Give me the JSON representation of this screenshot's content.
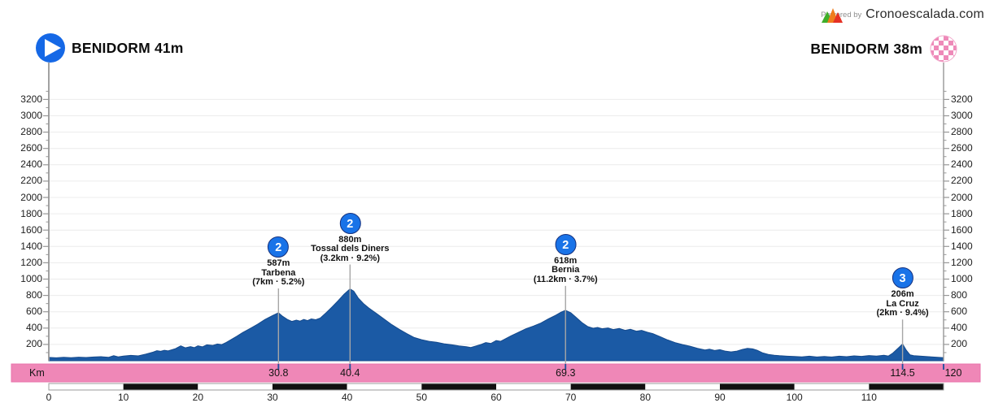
{
  "branding": {
    "powered_by": "Powered by",
    "brand": "Cronoescalada.com",
    "logo_colors": [
      "#3fae2a",
      "#f07d1d",
      "#e53125"
    ]
  },
  "header": {
    "start_label": "BENIDORM 41m",
    "finish_label": "BENIDORM 38m"
  },
  "colors": {
    "profile": "#1b5aa5",
    "profile_stroke": "#14498c",
    "badge": "#1973e8",
    "badge_border": "#16317d",
    "start_circle": "#1568e6",
    "finish_checker": "#ee8ab9",
    "finish_border": "#f2a8cb",
    "km_bar": "#ef87b7",
    "km_bar_border": "#e873ab",
    "km_tick_navy": "#1b4f9e",
    "grid": "#ececec",
    "axis": "#979797",
    "marker_line": "#a6a6a6",
    "scale_black": "#101010",
    "scale_white": "#ffffff",
    "scale_border": "#9b9b9b"
  },
  "chart_data": {
    "type": "area",
    "title": "",
    "xlabel": "Km",
    "ylabel": "",
    "x_range": [
      0,
      120
    ],
    "y_range": [
      0,
      3300
    ],
    "grid": true,
    "y_ticks": [
      200,
      400,
      600,
      800,
      1000,
      1200,
      1400,
      1600,
      1800,
      2000,
      2200,
      2400,
      2600,
      2800,
      3000,
      3200
    ],
    "x_ticks": [
      0,
      10,
      20,
      30,
      40,
      50,
      60,
      70,
      80,
      90,
      100,
      110
    ],
    "start": {
      "name": "BENIDORM",
      "elevation_m": 41
    },
    "finish": {
      "name": "BENIDORM",
      "elevation_m": 38,
      "km": 120
    },
    "climbs": [
      {
        "category": "2",
        "km": 30.8,
        "summit_m": 587,
        "summit": "587m",
        "name": "Tarbena",
        "detail": "(7km · 5.2%)"
      },
      {
        "category": "2",
        "km": 40.4,
        "summit_m": 880,
        "summit": "880m",
        "name": "Tossal dels Diners",
        "detail": "(3.2km · 9.2%)"
      },
      {
        "category": "2",
        "km": 69.3,
        "summit_m": 618,
        "summit": "618m",
        "name": "Bernia",
        "detail": "(11.2km · 3.7%)"
      },
      {
        "category": "3",
        "km": 114.5,
        "summit_m": 206,
        "summit": "206m",
        "name": "La Cruz",
        "detail": "(2km · 9.4%)"
      }
    ],
    "km_bar": {
      "label": "Km",
      "markers": [
        30.8,
        40.4,
        69.3,
        114.5,
        120
      ]
    },
    "points": [
      [
        0,
        41
      ],
      [
        1,
        36
      ],
      [
        2,
        42
      ],
      [
        3,
        38
      ],
      [
        4,
        44
      ],
      [
        5,
        40
      ],
      [
        6,
        46
      ],
      [
        7,
        50
      ],
      [
        8,
        42
      ],
      [
        8.7,
        62
      ],
      [
        9.3,
        48
      ],
      [
        10,
        58
      ],
      [
        11,
        66
      ],
      [
        12,
        60
      ],
      [
        13,
        82
      ],
      [
        14,
        105
      ],
      [
        14.5,
        122
      ],
      [
        15,
        115
      ],
      [
        15.5,
        128
      ],
      [
        16,
        120
      ],
      [
        17,
        148
      ],
      [
        17.7,
        182
      ],
      [
        18.3,
        158
      ],
      [
        19,
        172
      ],
      [
        19.5,
        160
      ],
      [
        20,
        182
      ],
      [
        20.6,
        170
      ],
      [
        21.2,
        195
      ],
      [
        22,
        188
      ],
      [
        22.6,
        205
      ],
      [
        23.2,
        198
      ],
      [
        23.8,
        225
      ],
      [
        24.5,
        262
      ],
      [
        25.2,
        300
      ],
      [
        26,
        345
      ],
      [
        27,
        395
      ],
      [
        28,
        448
      ],
      [
        29,
        505
      ],
      [
        30,
        552
      ],
      [
        30.8,
        587
      ],
      [
        31.3,
        548
      ],
      [
        32,
        505
      ],
      [
        32.6,
        482
      ],
      [
        33.2,
        498
      ],
      [
        33.7,
        486
      ],
      [
        34.2,
        505
      ],
      [
        34.7,
        492
      ],
      [
        35.2,
        512
      ],
      [
        35.8,
        502
      ],
      [
        36.4,
        522
      ],
      [
        37.2,
        588
      ],
      [
        38,
        660
      ],
      [
        38.8,
        735
      ],
      [
        39.6,
        815
      ],
      [
        40.4,
        880
      ],
      [
        40.9,
        852
      ],
      [
        41.5,
        768
      ],
      [
        42.2,
        700
      ],
      [
        43,
        640
      ],
      [
        44,
        575
      ],
      [
        45,
        508
      ],
      [
        46,
        442
      ],
      [
        47,
        385
      ],
      [
        48,
        332
      ],
      [
        49,
        285
      ],
      [
        50,
        258
      ],
      [
        51,
        238
      ],
      [
        52,
        226
      ],
      [
        53,
        208
      ],
      [
        54,
        196
      ],
      [
        55,
        182
      ],
      [
        56,
        172
      ],
      [
        56.6,
        162
      ],
      [
        57.2,
        178
      ],
      [
        58,
        200
      ],
      [
        58.6,
        222
      ],
      [
        59.3,
        212
      ],
      [
        60,
        248
      ],
      [
        60.6,
        238
      ],
      [
        61.3,
        272
      ],
      [
        62,
        305
      ],
      [
        63,
        348
      ],
      [
        64,
        392
      ],
      [
        65,
        425
      ],
      [
        66,
        462
      ],
      [
        67,
        512
      ],
      [
        68,
        558
      ],
      [
        68.7,
        595
      ],
      [
        69.3,
        618
      ],
      [
        70,
        588
      ],
      [
        70.7,
        532
      ],
      [
        71.5,
        468
      ],
      [
        72.3,
        418
      ],
      [
        73,
        398
      ],
      [
        73.6,
        408
      ],
      [
        74.2,
        392
      ],
      [
        75,
        402
      ],
      [
        75.7,
        382
      ],
      [
        76.5,
        395
      ],
      [
        77.3,
        372
      ],
      [
        78,
        385
      ],
      [
        78.8,
        362
      ],
      [
        79.5,
        372
      ],
      [
        80.3,
        348
      ],
      [
        81,
        332
      ],
      [
        82,
        295
      ],
      [
        83,
        255
      ],
      [
        84,
        222
      ],
      [
        85,
        198
      ],
      [
        86,
        178
      ],
      [
        87,
        152
      ],
      [
        88,
        132
      ],
      [
        88.6,
        142
      ],
      [
        89.3,
        125
      ],
      [
        90,
        135
      ],
      [
        90.7,
        118
      ],
      [
        91.5,
        108
      ],
      [
        92.3,
        118
      ],
      [
        93,
        138
      ],
      [
        93.7,
        152
      ],
      [
        94.4,
        145
      ],
      [
        95,
        128
      ],
      [
        95.7,
        98
      ],
      [
        96.5,
        78
      ],
      [
        97.3,
        68
      ],
      [
        98,
        62
      ],
      [
        99,
        56
      ],
      [
        100,
        52
      ],
      [
        101,
        48
      ],
      [
        102,
        56
      ],
      [
        103,
        46
      ],
      [
        104,
        52
      ],
      [
        105,
        46
      ],
      [
        106,
        56
      ],
      [
        107,
        50
      ],
      [
        108,
        60
      ],
      [
        109,
        54
      ],
      [
        110,
        64
      ],
      [
        111,
        58
      ],
      [
        112,
        68
      ],
      [
        112.6,
        58
      ],
      [
        113.2,
        95
      ],
      [
        114,
        162
      ],
      [
        114.5,
        206
      ],
      [
        115,
        128
      ],
      [
        115.5,
        72
      ],
      [
        116,
        62
      ],
      [
        117,
        56
      ],
      [
        118,
        50
      ],
      [
        119,
        44
      ],
      [
        120,
        38
      ]
    ]
  }
}
